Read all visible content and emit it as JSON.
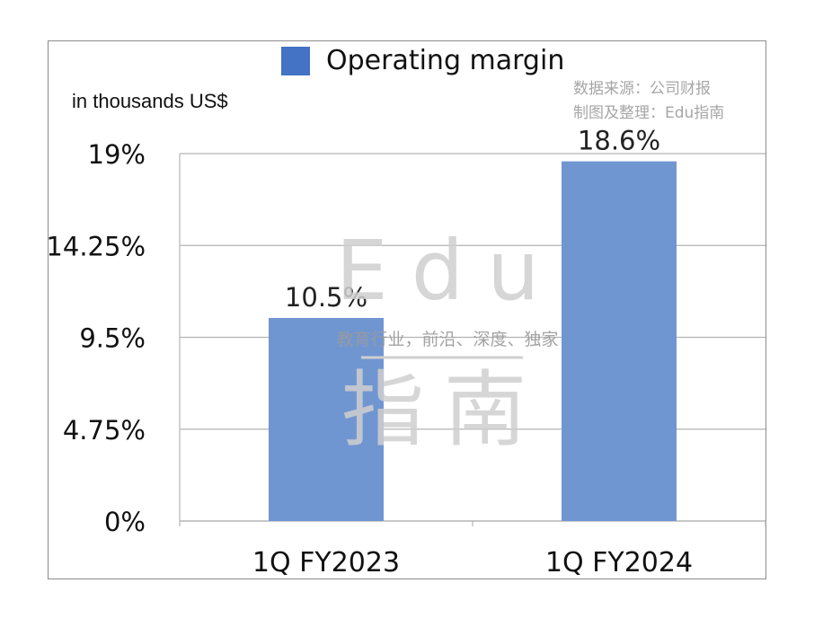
{
  "legend": {
    "label": "Operating margin",
    "color": "#4472c4"
  },
  "unit_label": "in thousands US$",
  "source": {
    "line1": "数据来源：公司财报",
    "line2": "制图及整理：Edu指南"
  },
  "watermark": {
    "text1": "Edu",
    "tagline": "教育行业，前沿、深度、独家",
    "text2": "指南"
  },
  "colors": {
    "bar": "#7096d2",
    "grid": "#b3b3b3",
    "watermark": "#cfcfcf",
    "watermark_dark": "#3e5f8f"
  },
  "chart_data": {
    "type": "bar",
    "categories": [
      "1Q FY2023",
      "1Q FY2024"
    ],
    "series": [
      {
        "name": "Operating margin",
        "values": [
          10.5,
          18.6
        ]
      }
    ],
    "data_labels": [
      "10.5%",
      "18.6%"
    ],
    "yticks": [
      0,
      4.75,
      9.5,
      14.25,
      19
    ],
    "ytick_labels": [
      "0%",
      "4.75%",
      "9.5%",
      "14.25%",
      "19%"
    ],
    "ylim": [
      0,
      19
    ],
    "grid": true,
    "legend_position": "top-center"
  }
}
